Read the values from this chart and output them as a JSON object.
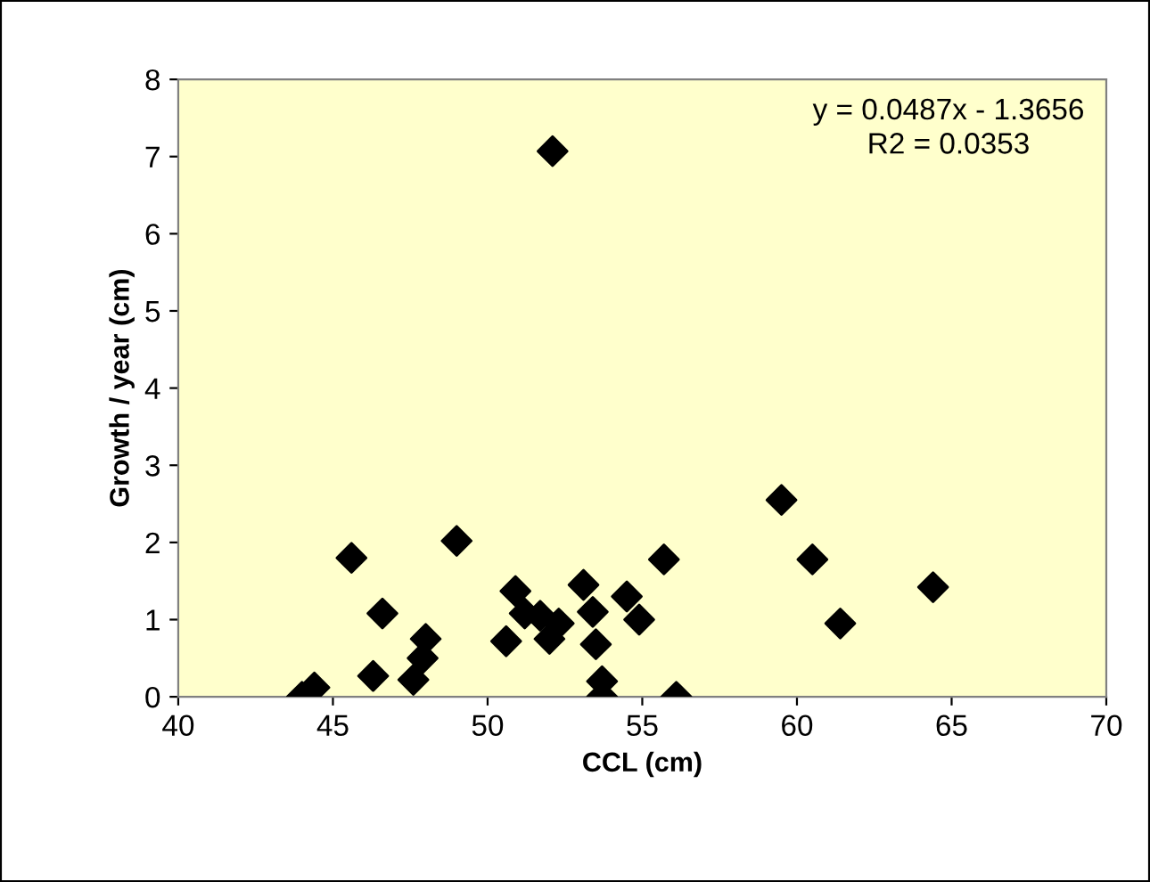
{
  "chart_data": {
    "type": "scatter",
    "xlabel": "CCL (cm)",
    "ylabel": "Growth / year (cm)",
    "x": [
      44.0,
      44.4,
      45.6,
      46.3,
      46.6,
      47.6,
      47.9,
      48.0,
      49.0,
      50.6,
      50.9,
      51.2,
      51.7,
      52.0,
      52.1,
      52.3,
      53.1,
      53.4,
      53.5,
      53.7,
      53.7,
      54.5,
      54.9,
      55.7,
      56.1,
      59.5,
      60.5,
      61.4,
      64.4
    ],
    "values": [
      0.0,
      0.12,
      1.8,
      0.27,
      1.08,
      0.22,
      0.5,
      0.75,
      2.02,
      0.72,
      1.37,
      1.08,
      1.05,
      0.75,
      7.07,
      0.95,
      1.45,
      1.1,
      0.68,
      0.2,
      0.0,
      1.3,
      1.0,
      1.78,
      0.0,
      2.55,
      1.78,
      0.95,
      1.42
    ],
    "color": "#000000",
    "marker": "diamond",
    "xlim": [
      40,
      70
    ],
    "xticks": [
      40,
      45,
      50,
      55,
      60,
      65,
      70
    ],
    "ylim": [
      0,
      8
    ],
    "yticks": [
      0,
      1,
      2,
      3,
      4,
      5,
      6,
      7,
      8
    ],
    "annotations": [
      "y = 0.0487x - 1.3656\nR2 = 0.0353"
    ],
    "grid": false,
    "legend": false
  }
}
